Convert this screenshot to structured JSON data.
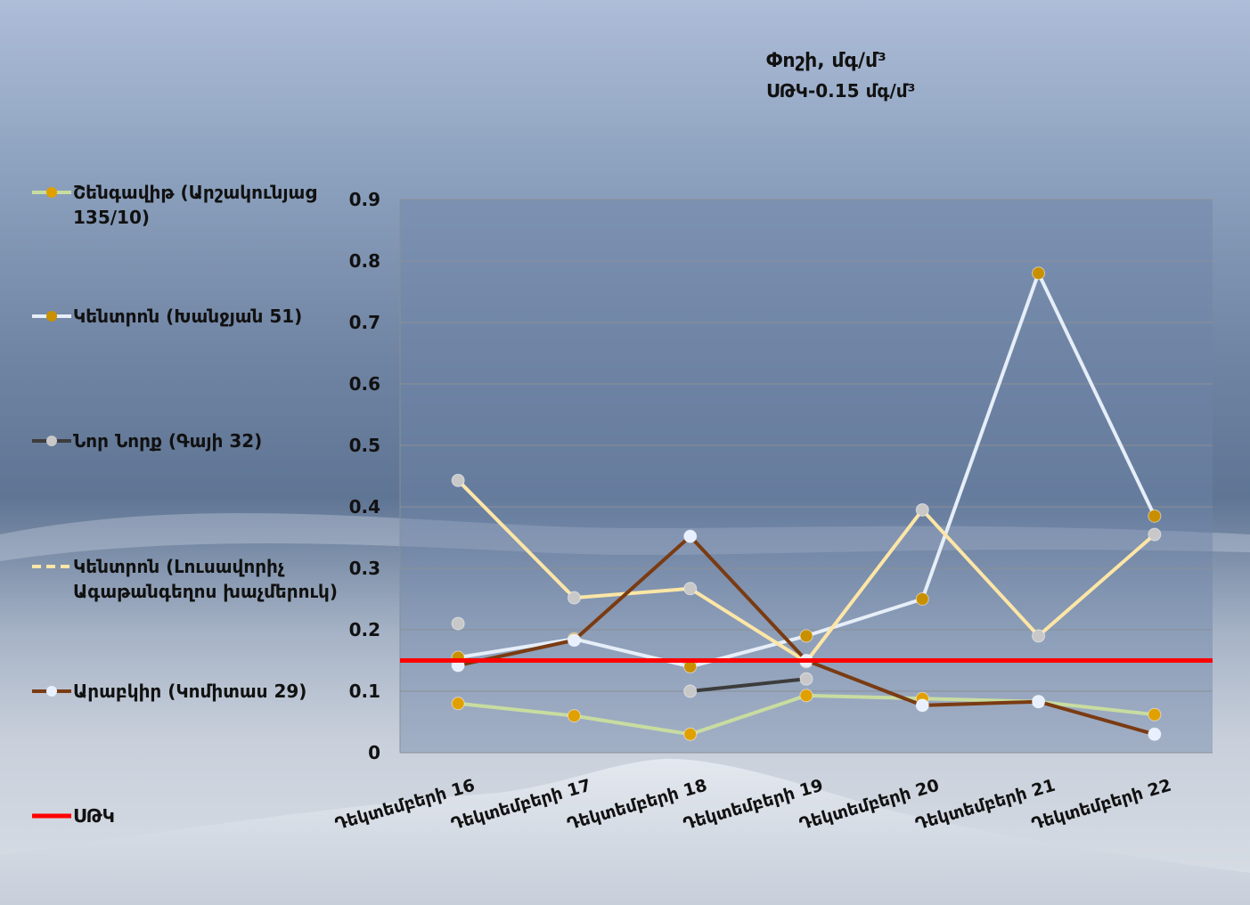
{
  "title": "Փոշի, մգ/մ³",
  "subtitle": "ՍԹԿ-0.15 մգ/մ³",
  "colors": {
    "shengavit": "#c8dca0",
    "kentron_khanjyan": "#e6eef8",
    "nor_nork": "#3c3c3c",
    "kentron_lusavorich": "#fde6a6",
    "arabkir": "#7a3b12",
    "stk": "#ff0000"
  },
  "chart_data": {
    "type": "line",
    "categories": [
      "Դեկտեմբերի 16",
      "Դեկտեմբերի 17",
      "Դեկտեմբերի 18",
      "Դեկտեմբերի 19",
      "Դեկտեմբերի 20",
      "Դեկտեմբերի 21",
      "Դեկտեմբերի 22"
    ],
    "ylim": [
      0,
      0.9
    ],
    "yticks": [
      "0",
      "0.1",
      "0.2",
      "0.3",
      "0.4",
      "0.5",
      "0.6",
      "0.7",
      "0.8",
      "0.9"
    ],
    "grid": true,
    "legend_position": "left",
    "series": [
      {
        "name": "Շենգավիթ (Արշակունյաց 135/10)",
        "key": "shengavit",
        "values": [
          0.08,
          0.06,
          0.03,
          0.093,
          0.088,
          0.083,
          0.062
        ],
        "marker": "#e0a000",
        "line": "#c8dca0"
      },
      {
        "name": "Կենտրոն (Խանջյան 51)",
        "key": "kentron_khanjyan",
        "values": [
          0.155,
          0.185,
          0.14,
          0.19,
          0.25,
          0.78,
          0.385
        ],
        "marker": "#c89000",
        "line": "#e6eef8"
      },
      {
        "name": "Նոր Նորք (Գայի 32)",
        "key": "nor_nork",
        "values": [
          0.21,
          null,
          0.1,
          0.12,
          null,
          null,
          null
        ],
        "marker": "#c8c8c8",
        "line": "#3c3c3c"
      },
      {
        "name": "Կենտրոն (Լուսավորիչ Ագաթանգեղոս խաչմերուկ)",
        "key": "kentron_lusavorich",
        "values": [
          0.443,
          0.252,
          0.267,
          0.148,
          0.395,
          0.19,
          0.355
        ],
        "marker": "#c8c8c8",
        "line": "#fde6a6"
      },
      {
        "name": "Արաբկիր (Կոմիտաս 29)",
        "key": "arabkir",
        "values": [
          0.142,
          0.183,
          0.352,
          0.15,
          0.077,
          0.083,
          0.03
        ],
        "marker": "#e8f0ff",
        "line": "#7a3b12"
      },
      {
        "name": "ՍԹԿ",
        "key": "stk",
        "values": [
          0.15,
          0.15,
          0.15,
          0.15,
          0.15,
          0.15,
          0.15
        ],
        "marker": null,
        "line": "#ff0000"
      }
    ]
  },
  "legend": {
    "items": [
      {
        "text": "Շենգավիթ (Արշակունյաց",
        "text2": "135/10)"
      },
      {
        "text": "Կենտրոն (Խանջյան 51)",
        "text2": ""
      },
      {
        "text": "Նոր Նորք (Գայի 32)",
        "text2": ""
      },
      {
        "text": "Կենտրոն (Լուսավորիչ",
        "text2": "Ագաթանգեղոս խաչմերուկ)"
      },
      {
        "text": "Արաբկիր (Կոմիտաս 29)",
        "text2": ""
      },
      {
        "text": "ՍԹԿ",
        "text2": ""
      }
    ]
  }
}
